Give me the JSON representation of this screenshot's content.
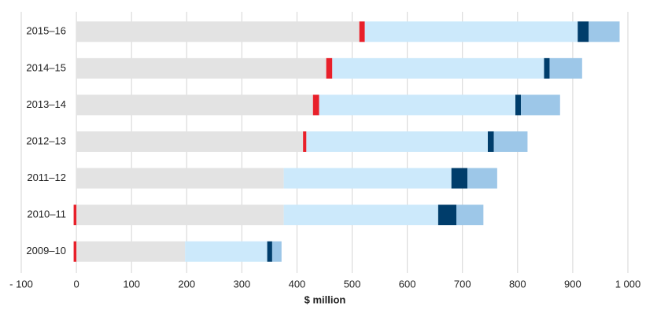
{
  "chart_data": {
    "type": "stacked-bar-horizontal",
    "x_label": "$ million",
    "categories": [
      "2015–16",
      "2014–15",
      "2013–14",
      "2012–13",
      "2011–12",
      "2010–11",
      "2009–10"
    ],
    "series": [
      {
        "color": "#e3e3e3",
        "values": [
          513,
          453,
          429,
          411,
          376,
          376,
          197
        ]
      },
      {
        "color": "#e8202a",
        "values": [
          10,
          11,
          11,
          6,
          0,
          -5,
          -5
        ]
      },
      {
        "color": "#cce9fb",
        "values": [
          386,
          384,
          356,
          329,
          304,
          280,
          149
        ]
      },
      {
        "color": "#003d6b",
        "values": [
          20,
          10,
          10,
          11,
          29,
          33,
          9
        ]
      },
      {
        "color": "#9dc7e8",
        "values": [
          56,
          59,
          71,
          61,
          54,
          49,
          17
        ]
      }
    ],
    "xlim": [
      -100,
      1000
    ],
    "xticks": [
      {
        "value": -100,
        "label": "- 100"
      },
      0,
      100,
      200,
      300,
      400,
      500,
      600,
      700,
      800,
      900,
      {
        "value": 1000,
        "label": "1 000"
      }
    ],
    "grid": true
  }
}
